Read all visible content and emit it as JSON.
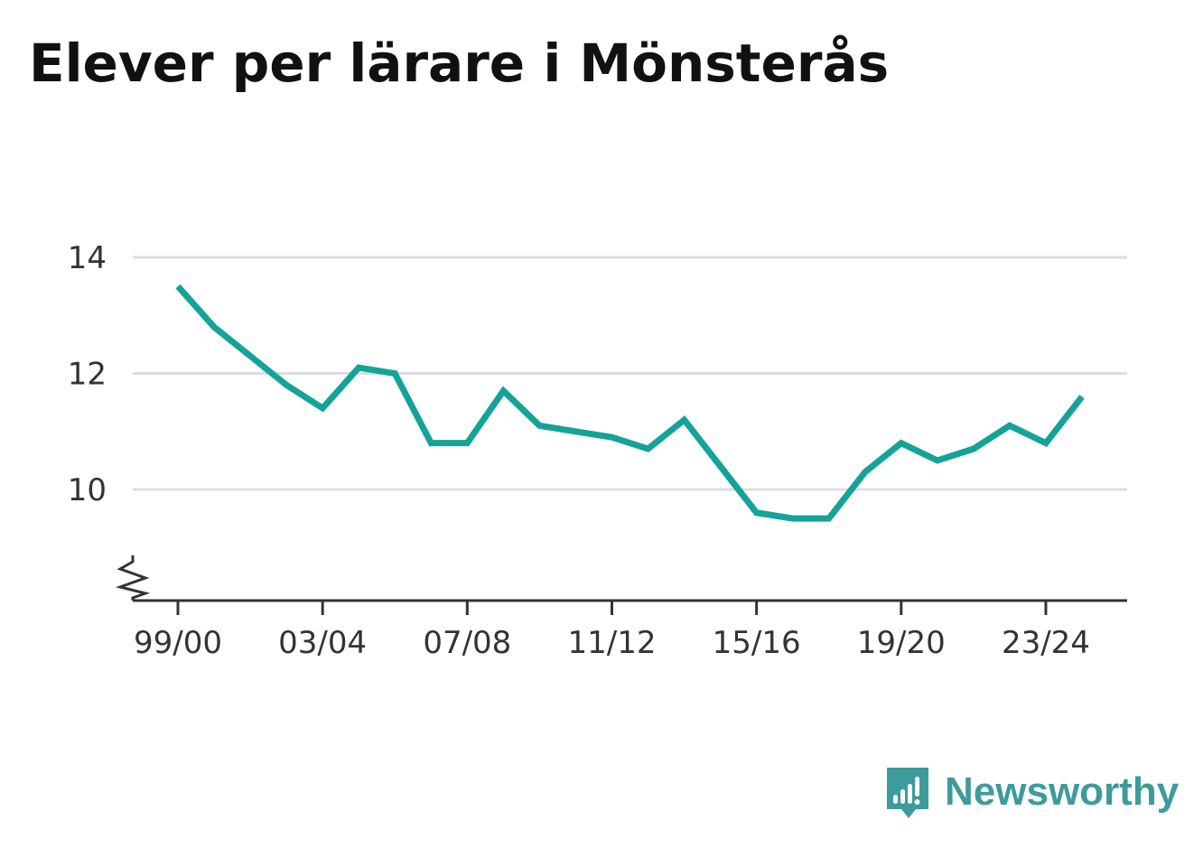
{
  "title": "Elever per lärare i Mönsterås",
  "brand": {
    "name": "Newsworthy",
    "color": "#3e9b9b"
  },
  "colors": {
    "line": "#14a399",
    "grid": "#dddddd",
    "axis": "#333333"
  },
  "chart_data": {
    "type": "line",
    "title": "Elever per lärare i Mönsterås",
    "xlabel": "",
    "ylabel": "",
    "x": [
      "99/00",
      "00/01",
      "01/02",
      "02/03",
      "03/04",
      "04/05",
      "05/06",
      "06/07",
      "07/08",
      "08/09",
      "09/10",
      "10/11",
      "11/12",
      "12/13",
      "13/14",
      "14/15",
      "15/16",
      "16/17",
      "17/18",
      "18/19",
      "19/20",
      "20/21",
      "21/22",
      "22/23",
      "23/24",
      "24/25"
    ],
    "x_tick_labels": [
      "99/00",
      "03/04",
      "07/08",
      "11/12",
      "15/16",
      "19/20",
      "23/24"
    ],
    "series": [
      {
        "values": [
          13.5,
          12.8,
          12.3,
          11.8,
          11.4,
          12.1,
          12.0,
          10.8,
          10.8,
          11.7,
          11.1,
          11.0,
          10.9,
          10.7,
          11.2,
          10.4,
          9.6,
          9.5,
          9.5,
          10.3,
          10.8,
          10.5,
          10.7,
          11.1,
          10.8,
          11.6
        ]
      }
    ],
    "y_ticks": [
      10,
      12,
      14
    ],
    "ylim": [
      8.1,
      14.4
    ],
    "y_axis_break": true,
    "grid": true,
    "legend": "none"
  }
}
